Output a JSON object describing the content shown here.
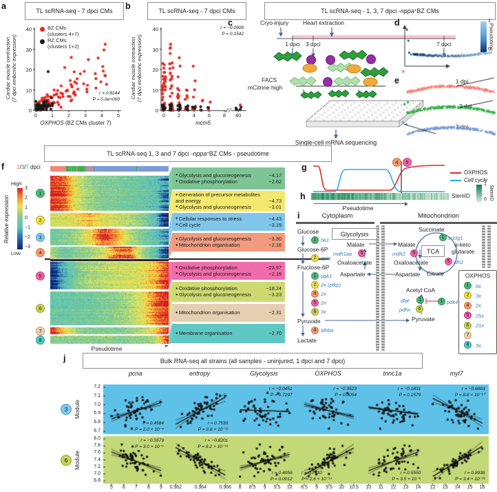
{
  "figure": {
    "panel_labels": {
      "a": "a",
      "b": "b",
      "c": "c",
      "d": "d",
      "e": "e",
      "f": "f",
      "g": "g",
      "h": "h",
      "i": "i",
      "j": "j"
    },
    "cluster_colors": {
      "1": {
        "fill": "#4fb87b",
        "border": "#2e8f57"
      },
      "2": {
        "fill": "#f2e44e",
        "border": "#b5a118"
      },
      "3": {
        "fill": "#82c8ec",
        "border": "#4a9cc9"
      },
      "4": {
        "fill": "#f29a70",
        "border": "#d96f3d"
      },
      "5": {
        "fill": "#ee63a8",
        "border": "#c13a7e"
      },
      "6": {
        "fill": "#c6d158",
        "border": "#97a32b"
      },
      "7": {
        "fill": "#e9d0b0",
        "border": "#bfa075"
      },
      "8": {
        "fill": "#5ac7c3",
        "border": "#2d9a96"
      }
    }
  },
  "a": {
    "title": "TL scRNA-seq - 7 dpci CMs",
    "ylabel_line1": "Cardiac muscle contraction",
    "ylabel_line2": "(7 dpci embcmhc expression)",
    "xlabel_gene": "OXPHOS",
    "xlabel_rest": " (BZ CMs cluster 7)",
    "yticks": [
      "0",
      "10",
      "20",
      "30",
      "40"
    ],
    "xticks": [
      "0",
      "1",
      "2",
      "3",
      "4",
      "5"
    ],
    "legend": [
      {
        "label1": "BZ CMs",
        "label2": "(clusters 4+7)",
        "color": "#e8251f"
      },
      {
        "label1": "RZ CMs",
        "label2": "(clusters 1+2)",
        "color": "#1a1a1a"
      }
    ],
    "r": "r = 0.8144",
    "p": "P = 0.0e+000"
  },
  "b": {
    "title": "TL scRNA-seq - 7 dpci CMs",
    "xlabel": "mcm5",
    "yticks": [
      "0",
      "10",
      "20",
      "30",
      "40"
    ],
    "xticks": [
      "0",
      "2",
      "4",
      "6",
      "8"
    ],
    "xtick_break": "40",
    "r": "r = −0.0906",
    "p": "P = 0.1542"
  },
  "cde": {
    "header_prefix": "TL scRNA-seq - 1, 3, 7 dpci - ",
    "header_gene": "nppa",
    "header_sup": "+",
    "header_suffix": " BZ CMs"
  },
  "c": {
    "step1": "Cryo-injury",
    "step2": "Heart extraction",
    "timeline": [
      "1 dpci",
      "3 dpci",
      "7 dpci"
    ],
    "facs_line1": "FACS",
    "facs_line2": "mCitrine high",
    "bottom": "Single-cell mRNA sequencing"
  },
  "d": {
    "colorbar_top": "1",
    "colorbar_bottom": "0",
    "colorbar_label": "Pseudotime"
  },
  "e": {
    "series": [
      {
        "label": "1 dpi",
        "color": "#f4867c"
      },
      {
        "label": "3 dpi",
        "color": "#35b44a"
      },
      {
        "label": "7 dpi",
        "color": "#7b9cd9"
      }
    ]
  },
  "f": {
    "title_prefix": "TL scRNA-seq 1, 3 and 7 dpci - ",
    "title_gene": "nppa",
    "title_sup": "+",
    "title_suffix": " BZ CMs - pseudotime",
    "dpci_legend": {
      "d1": "1",
      "sep1": "/",
      "d3": "3",
      "sep2": "/",
      "d7": "7",
      "rest": " dpci",
      "c1": "#f4867c",
      "c3": "#35b44a",
      "c7": "#7b9cd9"
    },
    "colorbar": {
      "high": "High",
      "low": "Low",
      "ticks": [
        "3",
        "2",
        "1",
        "0",
        "−1",
        "−2",
        "−3"
      ],
      "label": "Relative expression"
    },
    "xlabel": "Pseudotime",
    "clusters": [
      {
        "id": "1",
        "box": "#7dc594",
        "band_h": 51,
        "pattern": [
          3,
          2.6,
          1,
          0.3,
          0,
          -0.1,
          -0.2,
          -0.4,
          -0.7,
          -1.2
        ],
        "terms": [
          {
            "name": "Glycolysis and gluconeogenesis",
            "value": "−4.17"
          },
          {
            "name": "Oxidative phosphorylation",
            "value": "−2.62"
          }
        ]
      },
      {
        "id": "2",
        "box": "#f5e96d",
        "band_h": 20,
        "pattern": [
          0.9,
          1,
          1.3,
          1.8,
          1.2,
          0.9,
          0.6,
          0.2,
          -0.8,
          -2.6
        ],
        "terms": [
          {
            "name": "Generation of precursor metabolites and energy",
            "value": "−4.73"
          },
          {
            "name": "Glycolysis and gluconeogenesis",
            "value": "−3.01"
          }
        ]
      },
      {
        "id": "3",
        "box": "#7fc6ea",
        "band_h": 24,
        "pattern": [
          -0.3,
          0,
          0.4,
          1.3,
          2.7,
          2,
          0.7,
          0,
          -0.6,
          -1.3
        ],
        "terms": [
          {
            "name": "Cellular responses to stress",
            "value": "−4.43"
          },
          {
            "name": "Cell cycle",
            "value": "−3.19"
          }
        ]
      },
      {
        "id": "4",
        "box": "#f19a7e",
        "band_h": 17,
        "pattern": [
          0.6,
          -0.3,
          0.1,
          0.4,
          1,
          2.3,
          2.5,
          0.6,
          -0.6,
          -2.3
        ],
        "terms": [
          {
            "name": "Glycolysis and gluconeogenesis",
            "value": "−3.30"
          },
          {
            "name": "Mitochondrion organisation",
            "value": "−2.16"
          }
        ]
      },
      {
        "id": "5",
        "box": "#f06cab",
        "band_h": 40,
        "pattern": [
          -2.6,
          -1.1,
          0,
          0.4,
          0.6,
          0.8,
          0.9,
          1.1,
          1.7,
          3
        ],
        "terms": [
          {
            "name": "Oxidative phosphorylation",
            "value": "−23.97"
          },
          {
            "name": "Glycolysis and gluconeogenesis",
            "value": "−2.19"
          }
        ]
      },
      {
        "id": "6",
        "box": "#cdda72",
        "band_h": 49,
        "pattern": [
          -0.4,
          -0.4,
          -0.3,
          -0.2,
          0,
          0.2,
          0.5,
          1.1,
          2.2,
          3
        ],
        "terms": [
          {
            "name": "Oxidative phosphorylation",
            "value": "−18.24"
          },
          {
            "name": "Glycolysis and gluconeogenesis",
            "value": "−3.23"
          }
        ]
      },
      {
        "id": "7",
        "box": "#e6cfb0",
        "band_h": 10,
        "pattern": [
          3,
          1.4,
          0.3,
          0,
          0,
          0,
          0.2,
          0.6,
          1.4,
          2.8
        ],
        "terms": [
          {
            "name": "Mitochondrion organisation",
            "value": "−2.31"
          }
        ]
      },
      {
        "id": "8",
        "box": "#5fc8c2",
        "band_h": 12,
        "pattern": [
          0.2,
          0.2,
          0.2,
          0.2,
          0.2,
          0.2,
          0.2,
          0.3,
          0.6,
          3
        ],
        "terms": [
          {
            "name": "Membrane organisation",
            "value": "−2.70"
          }
        ]
      }
    ]
  },
  "g": {
    "legend": [
      {
        "label": "OXPHOS",
        "color": "#e8251f",
        "italic": false
      },
      {
        "label": "Cell cycle",
        "color": "#29abe2",
        "italic": true
      }
    ],
    "marker1": "4",
    "marker2": "5"
  },
  "h": {
    "bar_label": "StemID",
    "colorbar_top": "1",
    "colorbar_bottom": "0",
    "colorbar_label": "StemID",
    "xlabel": "Pseudotime"
  },
  "i": {
    "header_left": "Cytoplasm",
    "header_right": "Mitochondrion",
    "glycolysis_title": "Glycolysis",
    "tca_label": "TCA",
    "cascade": [
      {
        "text": "Glucose"
      },
      {
        "circle": "1",
        "gene": "hk1"
      },
      {
        "text": "Glucose-6P"
      },
      {
        "circle": "2",
        "gene": "gpia"
      },
      {
        "text": "Fructose-6P"
      },
      {
        "circle": "1",
        "gene": "pgk1"
      },
      {
        "circle": "2",
        "gene": "2x (pfkp)"
      },
      {
        "circle": "4",
        "gene": "2x"
      },
      {
        "circle": "5",
        "gene": "2x"
      },
      {
        "circle": "6",
        "gene": "3x"
      },
      {
        "text": "Pyruvate"
      },
      {
        "circle": "4",
        "gene": "ldhba"
      },
      {
        "text": "Lactate"
      }
    ],
    "cyto_shuttle": {
      "malate": "Malate",
      "enzyme": "mdh1aa",
      "enzyme_circle": "5",
      "oxaloacetate": "Oxaloacetate",
      "aspartate": "Aspartate"
    },
    "mito_shuttle": {
      "malate": "Malate",
      "enzyme": "mdh2",
      "enzyme_circle": "5",
      "oxaloacetate": "Oxaloacetate",
      "aspartate": "Aspartate"
    },
    "tca_items": {
      "succinate": "Succinate",
      "suclg1": "suclg1",
      "suclg1_circle": "1",
      "akg1": "α-keto",
      "akg2": "glutarate",
      "idh2": "idh2",
      "idh2_circle": "5",
      "citrate": "Citrate"
    },
    "acetyl": {
      "label": "Acetyl CoA",
      "dlat": "dlat",
      "dlat_circle": "1",
      "pdhx": "pdhx",
      "pdhx_circle": "6",
      "pdk4": "pdk4",
      "pdk4_circle": "1"
    },
    "pyruvate": "Pyruvate",
    "oxphos_box": {
      "title": "OXPHOS",
      "rows": [
        {
          "id": "1",
          "count": "6x"
        },
        {
          "id": "2",
          "count": "3x"
        },
        {
          "id": "4",
          "count": "2x"
        },
        {
          "id": "5",
          "count": "25x"
        },
        {
          "id": "6",
          "count": "21x"
        },
        {
          "id": "7",
          "count": ""
        },
        {
          "id": "8",
          "count": "3x"
        }
      ]
    }
  },
  "j": {
    "title": "Bulk RNA-seq all strains (all samples - uninjured, 1 dpci and 7 dpci)",
    "ylabel": "Module",
    "columns": [
      {
        "name": "pcna",
        "xticks": [
          "5",
          "6",
          "7",
          "8",
          "9"
        ]
      },
      {
        "name": "entropy",
        "xticks": [
          "0.962",
          "0.964",
          "0.966"
        ]
      },
      {
        "name": "Glycolysis",
        "xticks": [
          "8",
          "8.5",
          "9",
          "9.5",
          "10"
        ]
      },
      {
        "name": "OXPHOS",
        "xticks": [
          "8.5",
          "9",
          "9.5",
          "10",
          "10.5"
        ]
      },
      {
        "name": "tnnc1a",
        "xticks": [
          "10",
          "11",
          "12",
          "13",
          "14"
        ]
      },
      {
        "name": "myl7",
        "xticks": [
          "12",
          "13",
          "14",
          "15",
          "16"
        ]
      }
    ],
    "rows": [
      {
        "module": "3",
        "bg": "#5ec1e8",
        "circle_fill": "#82c8ec",
        "circle_border": "#4a9cc9",
        "yticks": [
          "7.2",
          "7.1",
          "7.0",
          "6.9",
          "6.8",
          "6.7"
        ],
        "cells": [
          {
            "r": 0.4584,
            "r_text": "r = 0.4584",
            "p_text": "P = 2.0 × 10⁻⁴",
            "pos": "br"
          },
          {
            "r": 0.753,
            "r_text": "r = 0.7530",
            "p_text": "P = 2.6 × 10⁻¹²",
            "pos": "br"
          },
          {
            "r": -0.0451,
            "r_text": "r = −0.0451",
            "p_text": "P = 0.7297",
            "pos": "tr"
          },
          {
            "r": -0.3523,
            "r_text": "r = −0.3523",
            "p_text": "P = 0.0054",
            "pos": "tr"
          },
          {
            "r": -0.1831,
            "r_text": "r = −0.1831",
            "p_text": "P = 0.1579",
            "pos": "tr"
          },
          {
            "r": -0.6883,
            "r_text": "r = −0.6883",
            "p_text": "P = 8.8 × 10⁻¹⁰",
            "pos": "tr"
          }
        ]
      },
      {
        "module": "6",
        "bg": "#c3d877",
        "circle_fill": "#c6d158",
        "circle_border": "#97a32b",
        "yticks": [
          "8.0",
          "7.8",
          "7.6",
          "7.4",
          "7.2",
          "7.0",
          "6.8"
        ],
        "cells": [
          {
            "r": -0.5579,
            "r_text": "r = −0.5579",
            "p_text": "P = 3.0 × 10⁻⁶",
            "pos": "tr"
          },
          {
            "r": -0.8201,
            "r_text": "r = −0.8201",
            "p_text": "P = 6.2 × 10⁻¹⁶",
            "pos": "tr"
          },
          {
            "r": 0.4056,
            "r_text": "r = 0.4056",
            "p_text": "P = 0.0012",
            "pos": "br"
          },
          {
            "r": 0.793,
            "r_text": "r = 0.7930",
            "p_text": "P = 2.6 × 10⁻¹⁴",
            "pos": "bl"
          },
          {
            "r": 0.555,
            "r_text": "r = 0.5550",
            "p_text": "P = 3.5 × 10⁻⁶",
            "pos": "br"
          },
          {
            "r": 0.8936,
            "r_text": "r = 0.8936",
            "p_text": "P = 3.4 × 10⁻²²",
            "pos": "br"
          }
        ]
      }
    ]
  }
}
